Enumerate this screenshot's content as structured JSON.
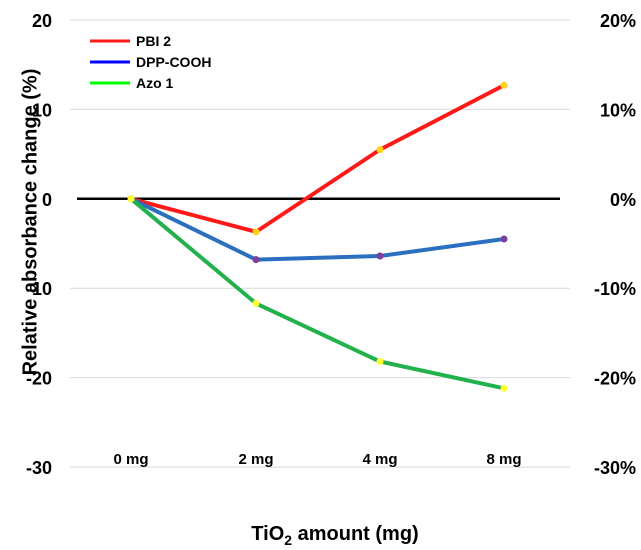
{
  "chart_data": {
    "type": "line",
    "categories": [
      "0 mg",
      "2 mg",
      "4 mg",
      "8 mg"
    ],
    "series": [
      {
        "name": "PBI 2",
        "values": [
          0,
          -3.7,
          5.5,
          12.7
        ],
        "color": "#ff1a1a",
        "marker_color": "#ffd21a"
      },
      {
        "name": "DPP-COOH",
        "values": [
          0,
          -6.8,
          -6.4,
          -4.5
        ],
        "color": "#2a6fc0",
        "marker_color": "#7b3fa0"
      },
      {
        "name": "Azo 1",
        "values": [
          0,
          -11.7,
          -18.2,
          -21.2
        ],
        "color": "#22b14c",
        "marker_color": "#ffff33"
      }
    ],
    "legend_colors": [
      "#ff1a1a",
      "#0000ff",
      "#00ff00"
    ],
    "ylim": [
      -30,
      20
    ],
    "y_ticks": [
      -30,
      -20,
      -10,
      0,
      10,
      20
    ],
    "y_tick_labels_left": [
      "-30",
      "-20",
      "-10",
      "0",
      "10",
      "20"
    ],
    "y_tick_labels_right": [
      "-30%",
      "-20%",
      "-10%",
      "0%",
      "10%",
      "20%"
    ],
    "ylabel": "Relative absorbance change (%)",
    "xlabel_prefix": "TiO",
    "xlabel_sub": "2",
    "xlabel_suffix": " amount (mg)",
    "grid": true,
    "legend_position": "top-left"
  }
}
